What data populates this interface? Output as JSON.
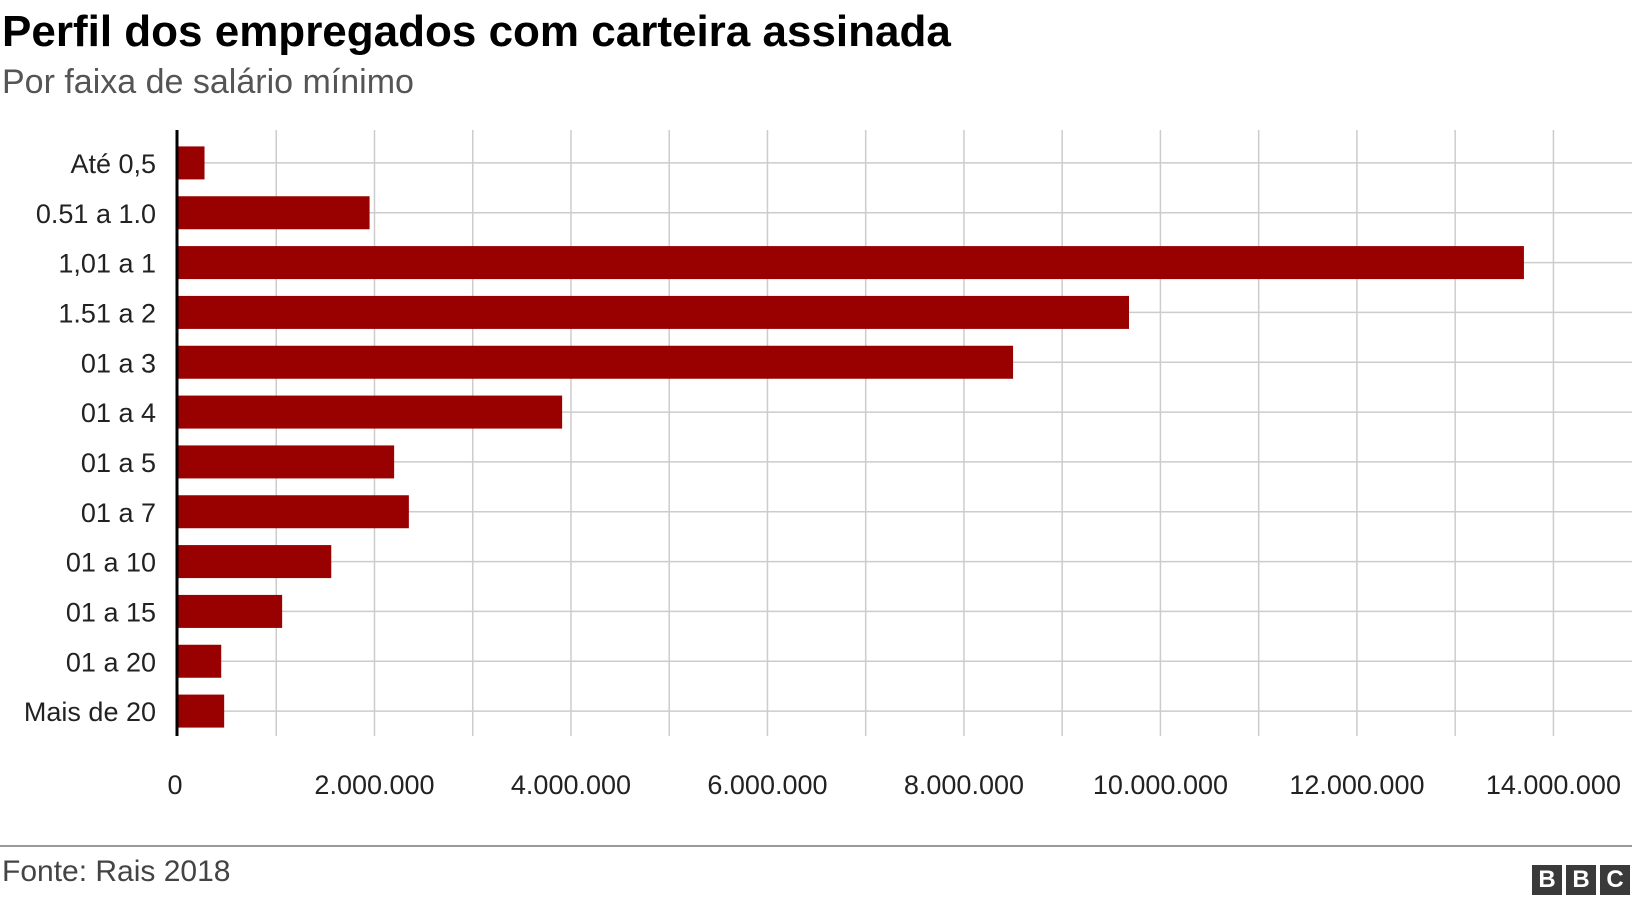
{
  "header": {
    "title": "Perfil dos empregados com carteira assinada",
    "subtitle": "Por faixa de salário mínimo"
  },
  "footer": {
    "source": "Fonte: Rais 2018",
    "logo": [
      "B",
      "B",
      "C"
    ]
  },
  "colors": {
    "bar": "#990000",
    "grid": "#cccccc",
    "axis": "#000000"
  },
  "chart_data": {
    "type": "bar",
    "orientation": "horizontal",
    "title": "Perfil dos empregados com carteira assinada",
    "subtitle": "Por faixa de salário mínimo",
    "categories": [
      "Até 0,5",
      "0.51 a 1.0",
      "1,01 a 1",
      "1.51 a 2",
      "01 a 3",
      "01 a 4",
      "01 a 5",
      "01 a 7",
      "01 a 10",
      "01 a 15",
      "01 a 20",
      "Mais de 20"
    ],
    "values": [
      270000,
      1950000,
      13700000,
      9680000,
      8500000,
      3910000,
      2200000,
      2350000,
      1560000,
      1060000,
      440000,
      470000
    ],
    "xlim": [
      0,
      14800000
    ],
    "ticks": [
      0,
      2000000,
      4000000,
      6000000,
      8000000,
      10000000,
      12000000,
      14000000
    ],
    "tick_labels": [
      "0",
      "2.000.000",
      "4.000.000",
      "6.000.000",
      "8.000.000",
      "10.000.000",
      "12.000.000",
      "14.000.000"
    ],
    "grid": true,
    "legend": "none"
  }
}
